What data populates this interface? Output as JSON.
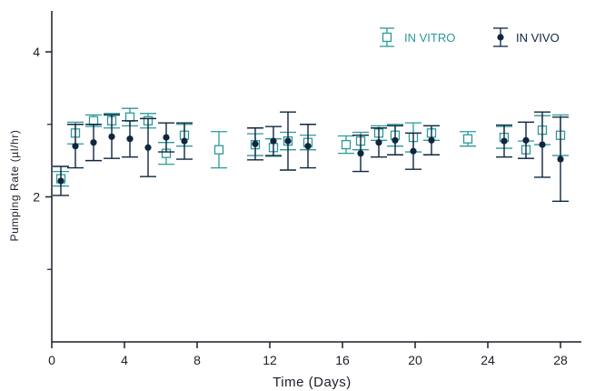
{
  "chart_data": {
    "type": "scatter",
    "xlabel": "Time (Days)",
    "ylabel": "Pumping Rate  (µl/hr)",
    "xlim": [
      0,
      30
    ],
    "ylim": [
      0,
      4.5
    ],
    "x_ticks": [
      0,
      4,
      8,
      12,
      16,
      20,
      24,
      28
    ],
    "y_ticks": [
      2,
      4
    ],
    "y_minor_ticks": [
      1,
      3
    ],
    "legend_position": "top-right",
    "series": [
      {
        "name": "IN VITRO",
        "color": "#2a9a98",
        "marker": "open-square",
        "points": [
          {
            "x": 0.5,
            "y": 2.25,
            "err": 0.1
          },
          {
            "x": 1.3,
            "y": 2.88,
            "err": 0.15
          },
          {
            "x": 2.3,
            "y": 3.05,
            "err": 0.08
          },
          {
            "x": 3.3,
            "y": 3.05,
            "err": 0.1
          },
          {
            "x": 4.3,
            "y": 3.1,
            "err": 0.12
          },
          {
            "x": 5.3,
            "y": 3.05,
            "err": 0.1
          },
          {
            "x": 6.3,
            "y": 2.6,
            "err": 0.15
          },
          {
            "x": 7.3,
            "y": 2.85,
            "err": 0.15
          },
          {
            "x": 9.2,
            "y": 2.65,
            "err": 0.25
          },
          {
            "x": 11.2,
            "y": 2.72,
            "err": 0.15
          },
          {
            "x": 12.2,
            "y": 2.68,
            "err": 0.12
          },
          {
            "x": 13.0,
            "y": 2.77,
            "err": 0.12
          },
          {
            "x": 14.1,
            "y": 2.75,
            "err": 0.1
          },
          {
            "x": 16.2,
            "y": 2.72,
            "err": 0.12
          },
          {
            "x": 17.0,
            "y": 2.77,
            "err": 0.12
          },
          {
            "x": 18.0,
            "y": 2.88,
            "err": 0.1
          },
          {
            "x": 18.9,
            "y": 2.85,
            "err": 0.15
          },
          {
            "x": 19.9,
            "y": 2.82,
            "err": 0.2
          },
          {
            "x": 20.9,
            "y": 2.88,
            "err": 0.1
          },
          {
            "x": 22.9,
            "y": 2.8,
            "err": 0.1
          },
          {
            "x": 24.9,
            "y": 2.82,
            "err": 0.15
          },
          {
            "x": 26.1,
            "y": 2.65,
            "err": 0.12
          },
          {
            "x": 27.0,
            "y": 2.92,
            "err": 0.2
          },
          {
            "x": 28.0,
            "y": 2.85,
            "err": 0.28
          }
        ]
      },
      {
        "name": "IN VIVO",
        "color": "#0f2640",
        "marker": "filled-circle",
        "points": [
          {
            "x": 0.5,
            "y": 2.22,
            "err": 0.2
          },
          {
            "x": 1.3,
            "y": 2.7,
            "err": 0.3
          },
          {
            "x": 2.3,
            "y": 2.75,
            "err": 0.25
          },
          {
            "x": 3.3,
            "y": 2.83,
            "err": 0.3
          },
          {
            "x": 4.3,
            "y": 2.8,
            "err": 0.25
          },
          {
            "x": 5.3,
            "y": 2.68,
            "err": 0.4
          },
          {
            "x": 6.3,
            "y": 2.82,
            "err": 0.2
          },
          {
            "x": 7.3,
            "y": 2.77,
            "err": 0.25
          },
          {
            "x": 11.2,
            "y": 2.73,
            "err": 0.22
          },
          {
            "x": 12.2,
            "y": 2.77,
            "err": 0.2
          },
          {
            "x": 13.0,
            "y": 2.77,
            "err": 0.4
          },
          {
            "x": 14.1,
            "y": 2.7,
            "err": 0.3
          },
          {
            "x": 17.0,
            "y": 2.6,
            "err": 0.25
          },
          {
            "x": 18.0,
            "y": 2.75,
            "err": 0.2
          },
          {
            "x": 18.9,
            "y": 2.78,
            "err": 0.2
          },
          {
            "x": 19.9,
            "y": 2.63,
            "err": 0.25
          },
          {
            "x": 20.9,
            "y": 2.78,
            "err": 0.2
          },
          {
            "x": 24.9,
            "y": 2.77,
            "err": 0.22
          },
          {
            "x": 26.1,
            "y": 2.78,
            "err": 0.25
          },
          {
            "x": 27.0,
            "y": 2.72,
            "err": 0.45
          },
          {
            "x": 28.0,
            "y": 2.52,
            "err": 0.58
          }
        ]
      }
    ]
  }
}
